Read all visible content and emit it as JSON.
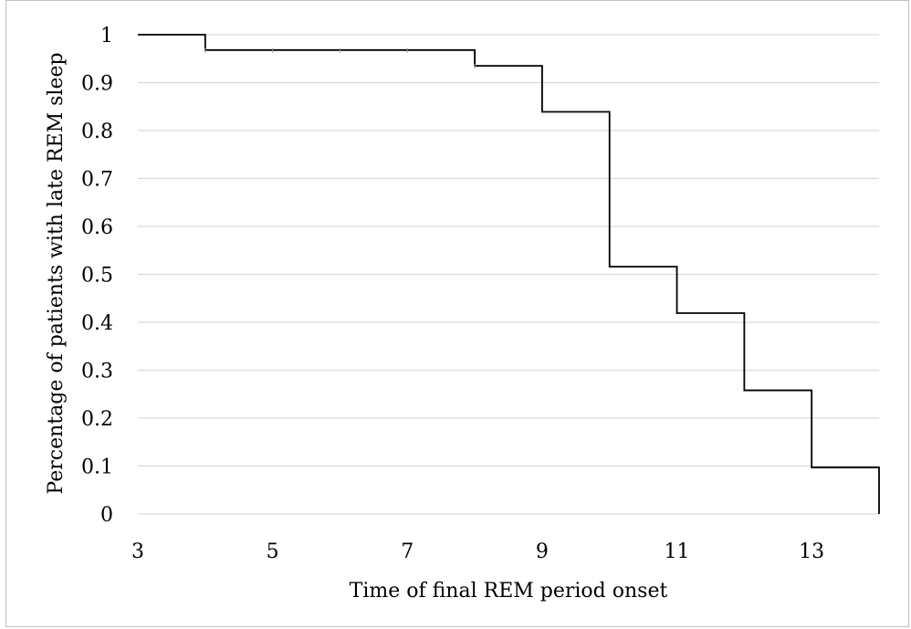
{
  "colors": {
    "frame": "#bfbfbf",
    "gridline": "#d9d9d9",
    "step_line": "#000000"
  },
  "chart_data": {
    "type": "line",
    "step": true,
    "title": "",
    "xlabel": "Time of final REM period onset",
    "ylabel": "Percentage of patients with late REM sleep",
    "xlim": [
      3,
      14
    ],
    "ylim": [
      0,
      1
    ],
    "xticks": [
      3,
      5,
      7,
      9,
      11,
      13
    ],
    "xtick_labels": [
      "3",
      "5",
      "7",
      "9",
      "11",
      "13"
    ],
    "yticks": [
      0,
      0.1,
      0.2,
      0.3,
      0.4,
      0.5,
      0.6,
      0.7,
      0.8,
      0.9,
      1
    ],
    "ytick_labels": [
      "0",
      "0.1",
      "0.2",
      "0.3",
      "0.4",
      "0.5",
      "0.6",
      "0.7",
      "0.8",
      "0.9",
      "1"
    ],
    "grid": "horizontal",
    "legend": "none",
    "series": [
      {
        "x": [
          3,
          4,
          8,
          9,
          10,
          11,
          12,
          13,
          14
        ],
        "y": [
          1,
          0.968,
          0.935,
          0.839,
          0.516,
          0.419,
          0.258,
          0.097,
          0
        ]
      }
    ],
    "censor_marks_x": [
      4,
      5,
      6,
      7,
      8
    ]
  }
}
